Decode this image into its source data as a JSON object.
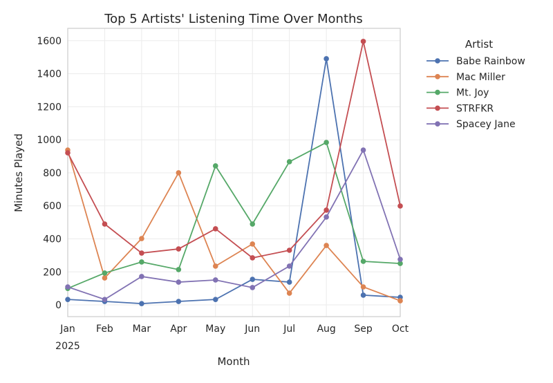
{
  "chart_data": {
    "type": "line",
    "title": "Top 5 Artists' Listening Time Over Months",
    "xlabel": "Month",
    "ylabel": "Minutes Played",
    "categories": [
      "Jan",
      "Feb",
      "Mar",
      "Apr",
      "May",
      "Jun",
      "Jul",
      "Aug",
      "Sep",
      "Oct"
    ],
    "year_label": "2025",
    "ylim": [
      -71,
      1675
    ],
    "yticks": [
      0,
      200,
      400,
      600,
      800,
      1000,
      1200,
      1400,
      1600
    ],
    "grid": true,
    "legend": {
      "title": "Artist",
      "placement": "outside-right"
    },
    "series": [
      {
        "name": "Babe Rainbow",
        "color": "#4c72b0",
        "values": [
          33,
          21,
          8,
          21,
          33,
          155,
          138,
          1491,
          59,
          46
        ]
      },
      {
        "name": "Mac Miller",
        "color": "#dd8452",
        "values": [
          938,
          163,
          402,
          800,
          235,
          369,
          71,
          360,
          109,
          25
        ]
      },
      {
        "name": "Mt. Joy",
        "color": "#55a868",
        "values": [
          100,
          193,
          260,
          214,
          842,
          490,
          867,
          984,
          264,
          251
        ]
      },
      {
        "name": "STRFKR",
        "color": "#c44e52",
        "values": [
          921,
          490,
          314,
          339,
          461,
          285,
          331,
          574,
          1596,
          599
        ]
      },
      {
        "name": "Spacey Jane",
        "color": "#8172b3",
        "values": [
          109,
          33,
          172,
          138,
          151,
          105,
          235,
          532,
          938,
          276
        ]
      }
    ]
  }
}
